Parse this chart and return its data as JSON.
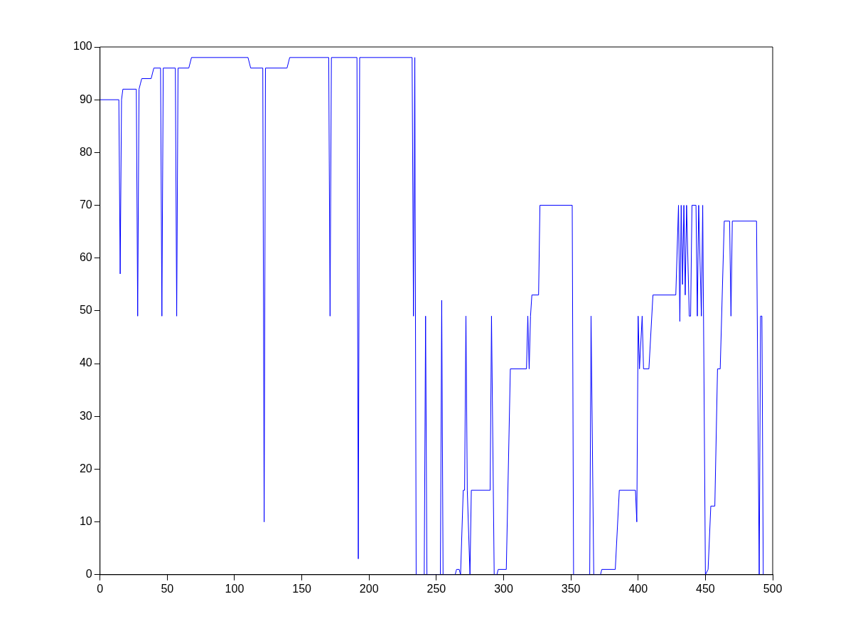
{
  "chart_data": {
    "type": "line",
    "xlim": [
      0,
      500
    ],
    "ylim": [
      0,
      100
    ],
    "xticks": [
      0,
      50,
      100,
      150,
      200,
      250,
      300,
      350,
      400,
      450,
      500
    ],
    "yticks": [
      0,
      10,
      20,
      30,
      40,
      50,
      60,
      70,
      80,
      90,
      100
    ],
    "grid": false,
    "legend": false,
    "marker": "none",
    "line_style": "solid",
    "series": [
      {
        "color": "#0000ff",
        "x": [
          0,
          14,
          15,
          16,
          17,
          27,
          28,
          29,
          30,
          31,
          38,
          40,
          45,
          46,
          47,
          56,
          57,
          58,
          66,
          68,
          110,
          112,
          121,
          122,
          123,
          139,
          141,
          170,
          171,
          172,
          191,
          192,
          193,
          232,
          233,
          234,
          235,
          241,
          242,
          243,
          253,
          254,
          255,
          264,
          265,
          267,
          268,
          270,
          271,
          272,
          273,
          275,
          276,
          290,
          291,
          293,
          295,
          296,
          302,
          305,
          317,
          318,
          319,
          320,
          321,
          326,
          327,
          351,
          352,
          364,
          365,
          367,
          372,
          373,
          383,
          386,
          398,
          399,
          400,
          401,
          403,
          404,
          408,
          411,
          428,
          430,
          431,
          432,
          433,
          434,
          435,
          436,
          438,
          439,
          440,
          443,
          444,
          445,
          447,
          448,
          450,
          452,
          454,
          457,
          459,
          461,
          464,
          468,
          469,
          470,
          488,
          490,
          491,
          492,
          493
        ],
        "values": [
          90,
          90,
          57,
          90,
          92,
          92,
          49,
          92,
          93,
          94,
          94,
          96,
          96,
          49,
          96,
          96,
          49,
          96,
          96,
          98,
          98,
          96,
          96,
          10,
          96,
          96,
          98,
          98,
          49,
          98,
          98,
          3,
          98,
          98,
          49,
          98,
          0,
          0,
          49,
          0,
          0,
          52,
          0,
          0,
          1,
          1,
          0,
          16,
          16,
          49,
          16,
          0,
          16,
          16,
          49,
          0,
          0,
          1,
          1,
          39,
          39,
          49,
          39,
          49,
          53,
          53,
          70,
          70,
          0,
          0,
          49,
          0,
          0,
          1,
          1,
          16,
          16,
          10,
          49,
          39,
          49,
          39,
          39,
          53,
          53,
          70,
          48,
          70,
          55,
          70,
          53,
          70,
          49,
          49,
          70,
          70,
          49,
          70,
          49,
          70,
          0,
          1,
          13,
          13,
          39,
          39,
          67,
          67,
          49,
          67,
          67,
          0,
          49,
          49,
          0
        ]
      }
    ]
  }
}
